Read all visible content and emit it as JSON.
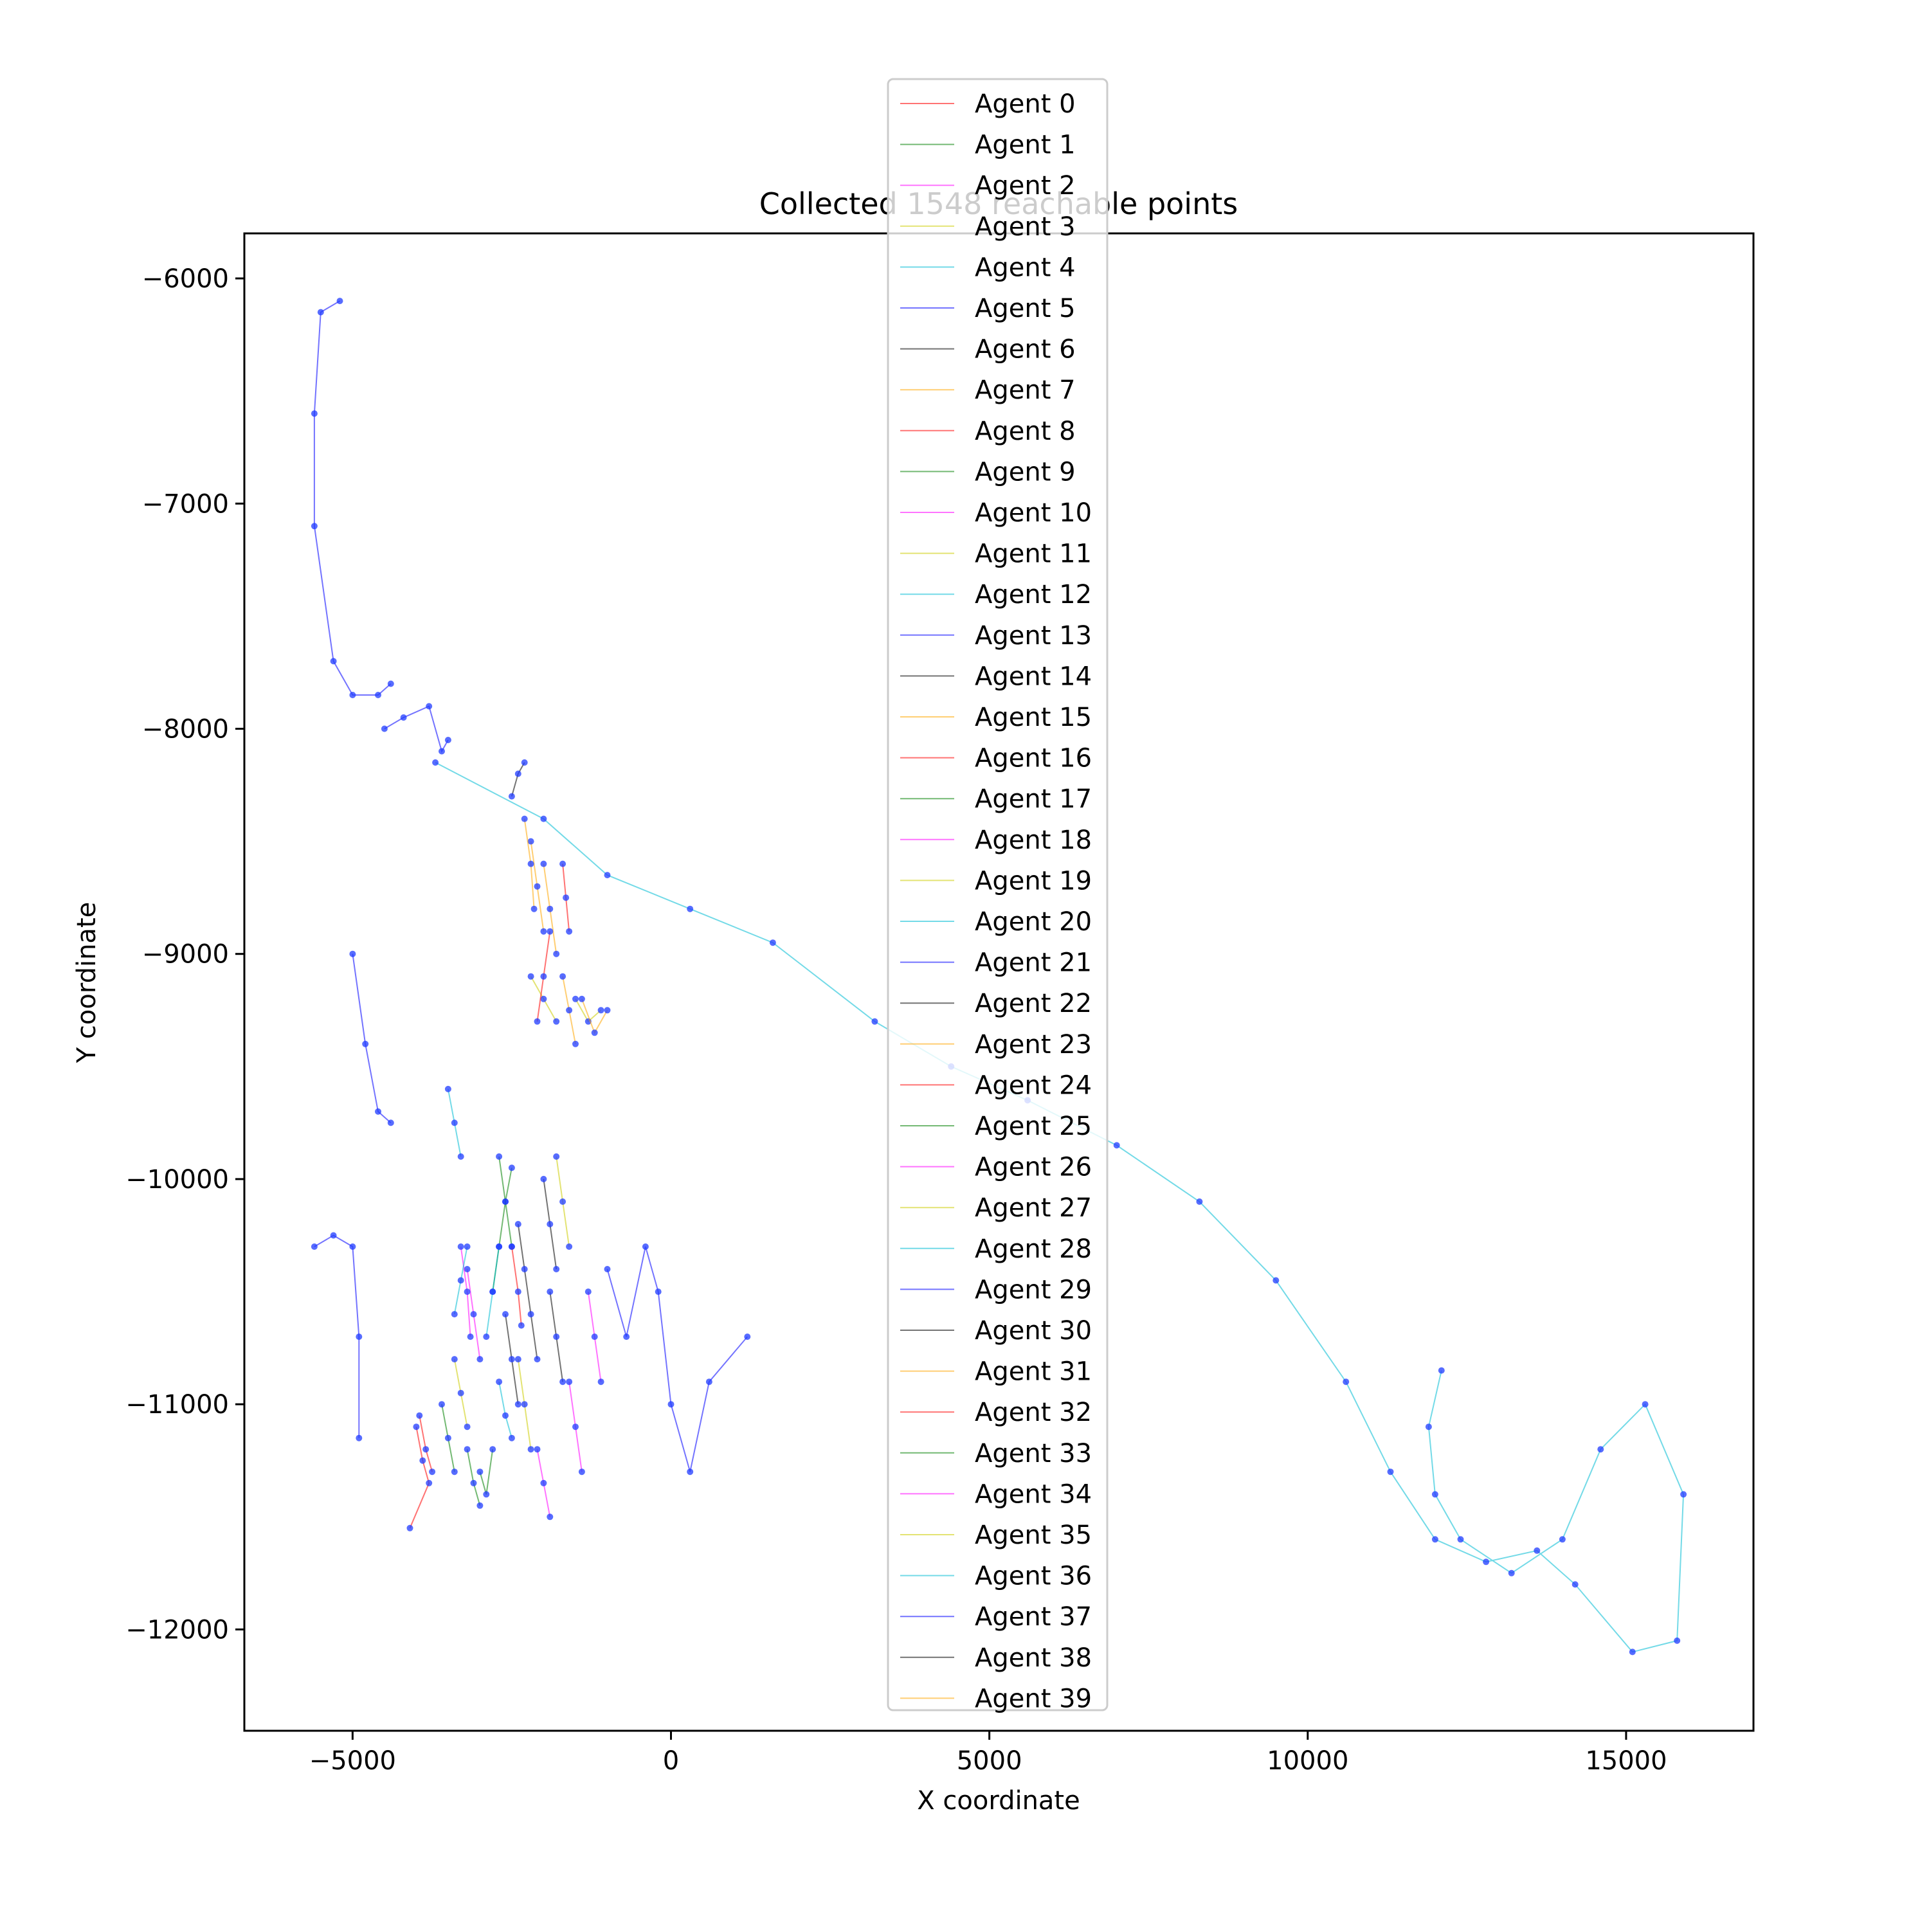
{
  "chart_data": {
    "type": "scatter",
    "title": "Collected 1548 reachable points",
    "xlabel": "X coordinate",
    "ylabel": "Y coordinate",
    "xlim": [
      -6700,
      17000
    ],
    "ylim": [
      -12450,
      -5800
    ],
    "x_ticks": [
      -5000,
      0,
      5000,
      10000,
      15000
    ],
    "y_ticks": [
      -6000,
      -7000,
      -8000,
      -9000,
      -10000,
      -11000,
      -12000
    ],
    "x_tick_labels": [
      "−5000",
      "0",
      "5000",
      "10000",
      "15000"
    ],
    "y_tick_labels": [
      "−6000",
      "−7000",
      "−8000",
      "−9000",
      "−10000",
      "−11000",
      "−12000"
    ],
    "grid": false,
    "legend_position": "top-center",
    "point_color": "#1f3bff",
    "series": [
      {
        "name": "Agent 0",
        "color": "#ff0000",
        "points": [
          [
            -4000,
            -11100
          ],
          [
            -3900,
            -11250
          ],
          [
            -3800,
            -11350
          ],
          [
            -4100,
            -11550
          ]
        ]
      },
      {
        "name": "Agent 1",
        "color": "#008000",
        "points": [
          [
            -2800,
            -10500
          ],
          [
            -2700,
            -10300
          ],
          [
            -2600,
            -10100
          ],
          [
            -2500,
            -9950
          ]
        ]
      },
      {
        "name": "Agent 2",
        "color": "#ff00ff",
        "points": [
          [
            -3200,
            -10400
          ],
          [
            -3100,
            -10600
          ],
          [
            -3000,
            -10800
          ]
        ]
      },
      {
        "name": "Agent 3",
        "color": "#cccc00",
        "points": [
          [
            -2200,
            -9100
          ],
          [
            -2000,
            -9200
          ],
          [
            -1800,
            -9300
          ]
        ]
      },
      {
        "name": "Agent 4",
        "color": "#00bcd4",
        "points": [
          [
            -3700,
            -8150
          ],
          [
            -2000,
            -8400
          ],
          [
            -1000,
            -8650
          ],
          [
            300,
            -8800
          ],
          [
            1600,
            -8950
          ],
          [
            3200,
            -9300
          ],
          [
            4400,
            -9500
          ],
          [
            5600,
            -9650
          ],
          [
            7000,
            -9850
          ],
          [
            8300,
            -10100
          ],
          [
            9500,
            -10450
          ],
          [
            10600,
            -10900
          ],
          [
            11300,
            -11300
          ],
          [
            12000,
            -11600
          ],
          [
            12800,
            -11700
          ],
          [
            13600,
            -11650
          ],
          [
            14200,
            -11800
          ],
          [
            15100,
            -12100
          ],
          [
            15800,
            -12050
          ],
          [
            15900,
            -11400
          ],
          [
            15300,
            -11000
          ],
          [
            14600,
            -11200
          ],
          [
            14000,
            -11600
          ],
          [
            13200,
            -11750
          ],
          [
            12400,
            -11600
          ],
          [
            12000,
            -11400
          ],
          [
            11900,
            -11100
          ],
          [
            12100,
            -10850
          ]
        ]
      },
      {
        "name": "Agent 5",
        "color": "#0000ff",
        "points": [
          [
            -5600,
            -10300
          ],
          [
            -5300,
            -10250
          ],
          [
            -5000,
            -10300
          ],
          [
            -4900,
            -10700
          ],
          [
            -4900,
            -11150
          ]
        ]
      },
      {
        "name": "Agent 6",
        "color": "#000000",
        "points": [
          [
            -2400,
            -10200
          ],
          [
            -2300,
            -10400
          ],
          [
            -2200,
            -10600
          ],
          [
            -2100,
            -10800
          ]
        ]
      },
      {
        "name": "Agent 7",
        "color": "#ffa500",
        "points": [
          [
            -2000,
            -8600
          ],
          [
            -1900,
            -8800
          ],
          [
            -1800,
            -9000
          ]
        ]
      },
      {
        "name": "Agent 8",
        "color": "#ff0000",
        "points": [
          [
            -1700,
            -8600
          ],
          [
            -1650,
            -8750
          ],
          [
            -1600,
            -8900
          ]
        ]
      },
      {
        "name": "Agent 9",
        "color": "#008000",
        "points": [
          [
            -2700,
            -9900
          ],
          [
            -2600,
            -10100
          ],
          [
            -2500,
            -10300
          ]
        ]
      },
      {
        "name": "Agent 10",
        "color": "#ff00ff",
        "points": [
          [
            -3300,
            -10300
          ],
          [
            -3200,
            -10500
          ],
          [
            -3150,
            -10700
          ]
        ]
      },
      {
        "name": "Agent 11",
        "color": "#cccc00",
        "points": [
          [
            -1500,
            -9200
          ],
          [
            -1300,
            -9300
          ],
          [
            -1100,
            -9250
          ]
        ]
      },
      {
        "name": "Agent 12",
        "color": "#00bcd4",
        "points": [
          [
            -3500,
            -9600
          ],
          [
            -3400,
            -9750
          ],
          [
            -3300,
            -9900
          ]
        ]
      },
      {
        "name": "Agent 13",
        "color": "#0000ff",
        "points": [
          [
            -5000,
            -9000
          ],
          [
            -4800,
            -9400
          ],
          [
            -4600,
            -9700
          ],
          [
            -4400,
            -9750
          ]
        ]
      },
      {
        "name": "Agent 14",
        "color": "#000000",
        "points": [
          [
            -2500,
            -8300
          ],
          [
            -2400,
            -8200
          ],
          [
            -2300,
            -8150
          ]
        ]
      },
      {
        "name": "Agent 15",
        "color": "#ffa500",
        "points": [
          [
            -2200,
            -8500
          ],
          [
            -2100,
            -8700
          ],
          [
            -2000,
            -8900
          ]
        ]
      },
      {
        "name": "Agent 16",
        "color": "#ff0000",
        "points": [
          [
            -2100,
            -9300
          ],
          [
            -2000,
            -9100
          ],
          [
            -1900,
            -8900
          ]
        ]
      },
      {
        "name": "Agent 17",
        "color": "#008000",
        "points": [
          [
            -3000,
            -11300
          ],
          [
            -2900,
            -11400
          ],
          [
            -2800,
            -11200
          ]
        ]
      },
      {
        "name": "Agent 18",
        "color": "#ff00ff",
        "points": [
          [
            -1600,
            -10900
          ],
          [
            -1500,
            -11100
          ],
          [
            -1400,
            -11300
          ]
        ]
      },
      {
        "name": "Agent 19",
        "color": "#cccc00",
        "points": [
          [
            -2400,
            -10800
          ],
          [
            -2300,
            -11000
          ],
          [
            -2200,
            -11200
          ]
        ]
      },
      {
        "name": "Agent 20",
        "color": "#00bcd4",
        "points": [
          [
            -2900,
            -10700
          ],
          [
            -2800,
            -10500
          ],
          [
            -2700,
            -10300
          ]
        ]
      },
      {
        "name": "Agent 21",
        "color": "#0000ff",
        "points": [
          [
            -4500,
            -8000
          ],
          [
            -4200,
            -7950
          ],
          [
            -3800,
            -7900
          ],
          [
            -3600,
            -8100
          ],
          [
            -3500,
            -8050
          ]
        ]
      },
      {
        "name": "Agent 22",
        "color": "#000000",
        "points": [
          [
            -2000,
            -10000
          ],
          [
            -1900,
            -10200
          ],
          [
            -1800,
            -10400
          ]
        ]
      },
      {
        "name": "Agent 23",
        "color": "#ffa500",
        "points": [
          [
            -2300,
            -8400
          ],
          [
            -2200,
            -8600
          ],
          [
            -2150,
            -8800
          ]
        ]
      },
      {
        "name": "Agent 24",
        "color": "#ff0000",
        "points": [
          [
            -3950,
            -11050
          ],
          [
            -3850,
            -11200
          ],
          [
            -3750,
            -11300
          ]
        ]
      },
      {
        "name": "Agent 25",
        "color": "#008000",
        "points": [
          [
            -3200,
            -11200
          ],
          [
            -3100,
            -11350
          ],
          [
            -3000,
            -11450
          ]
        ]
      },
      {
        "name": "Agent 26",
        "color": "#ff00ff",
        "points": [
          [
            -1300,
            -10500
          ],
          [
            -1200,
            -10700
          ],
          [
            -1100,
            -10900
          ]
        ]
      },
      {
        "name": "Agent 27",
        "color": "#cccc00",
        "points": [
          [
            -1800,
            -9900
          ],
          [
            -1700,
            -10100
          ],
          [
            -1600,
            -10300
          ]
        ]
      },
      {
        "name": "Agent 28",
        "color": "#00bcd4",
        "points": [
          [
            -3400,
            -10600
          ],
          [
            -3300,
            -10450
          ],
          [
            -3200,
            -10300
          ]
        ]
      },
      {
        "name": "Agent 29",
        "color": "#0000ff",
        "points": [
          [
            -1000,
            -10400
          ],
          [
            -700,
            -10700
          ],
          [
            -400,
            -10300
          ],
          [
            -200,
            -10500
          ],
          [
            0,
            -11000
          ],
          [
            300,
            -11300
          ],
          [
            600,
            -10900
          ],
          [
            1200,
            -10700
          ]
        ]
      },
      {
        "name": "Agent 30",
        "color": "#000000",
        "points": [
          [
            -2600,
            -10600
          ],
          [
            -2500,
            -10800
          ],
          [
            -2400,
            -11000
          ]
        ]
      },
      {
        "name": "Agent 31",
        "color": "#ffa500",
        "points": [
          [
            -1700,
            -9100
          ],
          [
            -1600,
            -9250
          ],
          [
            -1500,
            -9400
          ]
        ]
      },
      {
        "name": "Agent 32",
        "color": "#ff0000",
        "points": [
          [
            -2500,
            -10300
          ],
          [
            -2400,
            -10500
          ],
          [
            -2350,
            -10650
          ]
        ]
      },
      {
        "name": "Agent 33",
        "color": "#008000",
        "points": [
          [
            -3600,
            -11000
          ],
          [
            -3500,
            -11150
          ],
          [
            -3400,
            -11300
          ]
        ]
      },
      {
        "name": "Agent 34",
        "color": "#ff00ff",
        "points": [
          [
            -2100,
            -11200
          ],
          [
            -2000,
            -11350
          ],
          [
            -1900,
            -11500
          ]
        ]
      },
      {
        "name": "Agent 35",
        "color": "#cccc00",
        "points": [
          [
            -3400,
            -10800
          ],
          [
            -3300,
            -10950
          ],
          [
            -3200,
            -11100
          ]
        ]
      },
      {
        "name": "Agent 36",
        "color": "#00bcd4",
        "points": [
          [
            -2700,
            -10900
          ],
          [
            -2600,
            -11050
          ],
          [
            -2500,
            -11150
          ]
        ]
      },
      {
        "name": "Agent 37",
        "color": "#0000ff",
        "points": [
          [
            -5200,
            -6100
          ],
          [
            -5500,
            -6150
          ],
          [
            -5600,
            -6600
          ],
          [
            -5600,
            -7100
          ],
          [
            -5300,
            -7700
          ],
          [
            -5000,
            -7850
          ],
          [
            -4600,
            -7850
          ],
          [
            -4400,
            -7800
          ]
        ]
      },
      {
        "name": "Agent 38",
        "color": "#000000",
        "points": [
          [
            -1900,
            -10500
          ],
          [
            -1800,
            -10700
          ],
          [
            -1700,
            -10900
          ]
        ]
      },
      {
        "name": "Agent 39",
        "color": "#ffa500",
        "points": [
          [
            -1400,
            -9200
          ],
          [
            -1200,
            -9350
          ],
          [
            -1000,
            -9250
          ]
        ]
      }
    ]
  }
}
